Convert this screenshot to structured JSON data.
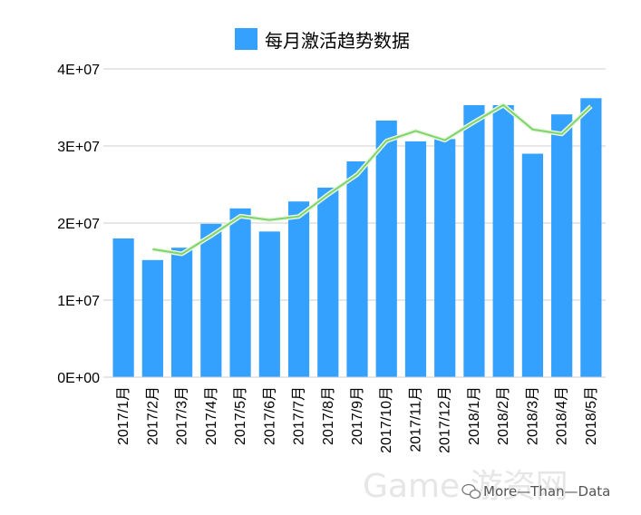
{
  "chart_data": {
    "type": "bar",
    "title": "",
    "xlabel": "",
    "ylabel": "",
    "legend": {
      "position": "top-center",
      "entries": [
        "每月激活趋势数据"
      ]
    },
    "categories": [
      "2017/1月",
      "2017/2月",
      "2017/3月",
      "2017/4月",
      "2017/5月",
      "2017/6月",
      "2017/7月",
      "2017/8月",
      "2017/9月",
      "2017/10月",
      "2017/11月",
      "2017/12月",
      "2018/1月",
      "2018/2月",
      "2018/3月",
      "2018/4月",
      "2018/5月"
    ],
    "series": [
      {
        "name": "每月激活趋势数据",
        "type": "bar",
        "color": "#33a1fd",
        "values": [
          18000000,
          15200000,
          16800000,
          19900000,
          21900000,
          18900000,
          22800000,
          24600000,
          28000000,
          33300000,
          30600000,
          30900000,
          35300000,
          35300000,
          29000000,
          34100000,
          36200000
        ]
      },
      {
        "type": "line",
        "color": "#7ed46a",
        "values": [
          null,
          16600000,
          16000000,
          18350000,
          20900000,
          20400000,
          20850000,
          23700000,
          26300000,
          30650000,
          31950000,
          30750000,
          33100000,
          35300000,
          32150000,
          31550000,
          35150000
        ]
      }
    ],
    "ylim": [
      0,
      40000000
    ],
    "yticks": [
      "0E+00",
      "1E+07",
      "2E+07",
      "3E+07",
      "4E+07"
    ],
    "grid": true
  },
  "watermark": {
    "text": "More—Than—Data",
    "faint_text": "Game  游资网"
  }
}
